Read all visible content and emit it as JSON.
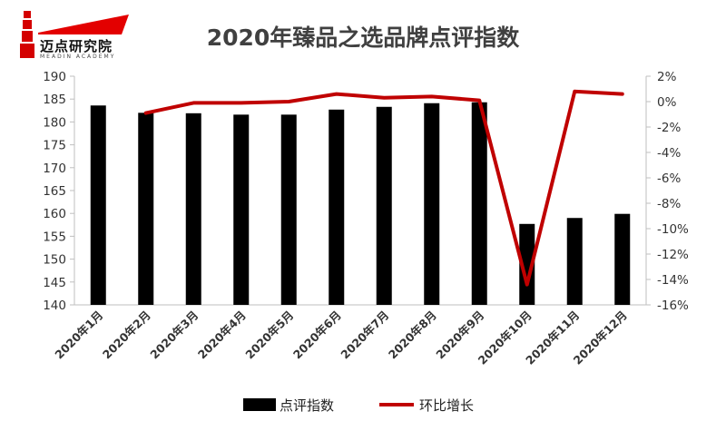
{
  "brand": {
    "logo_text": "迈点研究院",
    "logo_sub": "MEADIN ACADEMY"
  },
  "chart_data": {
    "type": "bar+line",
    "title": "2020年臻品之选品牌点评指数",
    "categories": [
      "2020年1月",
      "2020年2月",
      "2020年3月",
      "2020年4月",
      "2020年5月",
      "2020年6月",
      "2020年7月",
      "2020年8月",
      "2020年9月",
      "2020年10月",
      "2020年11月",
      "2020年12月"
    ],
    "series": [
      {
        "name": "点评指数",
        "type": "bar",
        "axis": "left",
        "color": "#000000",
        "values": [
          183.6,
          182.0,
          181.9,
          181.6,
          181.6,
          182.7,
          183.3,
          184.1,
          184.3,
          157.7,
          159.0,
          159.9
        ]
      },
      {
        "name": "环比增长",
        "type": "line",
        "axis": "right",
        "color": "#c00000",
        "values": [
          null,
          -0.9,
          -0.1,
          -0.1,
          0.0,
          0.6,
          0.3,
          0.4,
          0.1,
          -14.4,
          0.8,
          0.6
        ]
      }
    ],
    "left_axis": {
      "min": 140,
      "max": 190,
      "step": 5,
      "ticks": [
        "140",
        "145",
        "150",
        "155",
        "160",
        "165",
        "170",
        "175",
        "180",
        "185",
        "190"
      ]
    },
    "right_axis": {
      "min": -16,
      "max": 2,
      "step": 2,
      "ticks": [
        "-16%",
        "-14%",
        "-12%",
        "-10%",
        "-8%",
        "-6%",
        "-4%",
        "-2%",
        "0%",
        "2%"
      ]
    },
    "grid": false,
    "legend_position": "bottom"
  }
}
